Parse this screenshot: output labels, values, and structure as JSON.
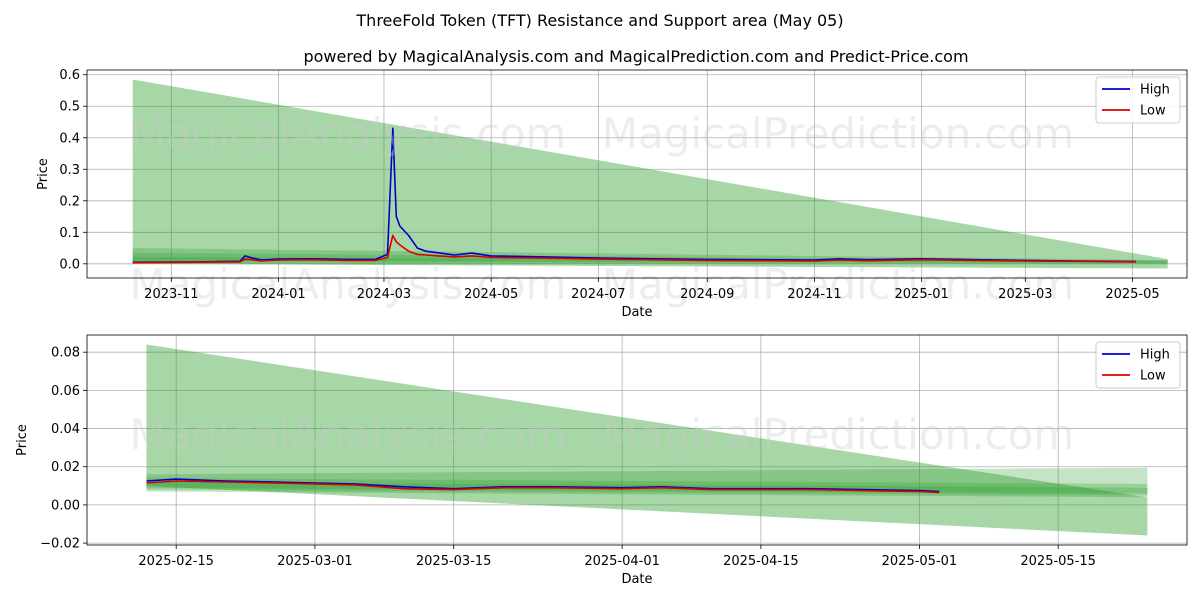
{
  "title": "ThreeFold Token (TFT) Resistance and Support area (May 05)",
  "subtitle": "powered by MagicalAnalysis.com and MagicalPrediction.com and Predict-Price.com",
  "watermarks": [
    "MagicalAnalysis.com",
    "MagicalPrediction.com"
  ],
  "colors": {
    "high": "#0000cc",
    "low": "#dd0000",
    "band": "#2e9e2e",
    "grid": "#b0b0b0"
  },
  "legend": {
    "high": "High",
    "low": "Low",
    "placement": "top-right"
  },
  "chart_data": [
    {
      "type": "line",
      "xlabel": "Date",
      "ylabel": "Price",
      "xlim": [
        "2023-09-14",
        "2025-06-01"
      ],
      "ylim": [
        -0.045,
        0.615
      ],
      "xticks": [
        "2023-11",
        "2024-01",
        "2024-03",
        "2024-05",
        "2024-07",
        "2024-09",
        "2024-11",
        "2025-01",
        "2025-03",
        "2025-05"
      ],
      "xtick_dates": [
        "2023-11-01",
        "2024-01-01",
        "2024-03-01",
        "2024-05-01",
        "2024-07-01",
        "2024-09-01",
        "2024-11-01",
        "2025-01-01",
        "2025-03-01",
        "2025-05-01"
      ],
      "yticks": [
        0.0,
        0.1,
        0.2,
        0.3,
        0.4,
        0.5,
        0.6
      ],
      "ytick_labels": [
        "0.0",
        "0.1",
        "0.2",
        "0.3",
        "0.4",
        "0.5",
        "0.6"
      ],
      "grid": true,
      "resistance_triangle": {
        "start": "2023-10-10",
        "end": "2025-05-21",
        "top_start": 0.585,
        "top_end": 0.015,
        "bottom_start": 0.0,
        "bottom_end": -0.015
      },
      "support_bands": [
        {
          "start": "2023-10-10",
          "end": "2025-05-21",
          "y0_start": 0.0,
          "y1_start": 0.05,
          "y0_end": 0.0,
          "y1_end": 0.012
        },
        {
          "start": "2023-10-10",
          "end": "2025-05-21",
          "y0_start": 0.005,
          "y1_start": 0.035,
          "y0_end": 0.002,
          "y1_end": 0.01
        },
        {
          "start": "2023-10-10",
          "end": "2025-05-21",
          "y0_start": 0.01,
          "y1_start": 0.022,
          "y0_end": 0.004,
          "y1_end": 0.008
        }
      ],
      "series": [
        {
          "name": "High",
          "x": [
            "2023-10-10",
            "2023-11-15",
            "2023-12-10",
            "2023-12-13",
            "2023-12-16",
            "2023-12-22",
            "2024-01-01",
            "2024-01-20",
            "2024-02-10",
            "2024-02-25",
            "2024-03-03",
            "2024-03-06",
            "2024-03-08",
            "2024-03-10",
            "2024-03-15",
            "2024-03-20",
            "2024-03-25",
            "2024-04-01",
            "2024-04-10",
            "2024-04-20",
            "2024-05-01",
            "2024-06-01",
            "2024-07-01",
            "2024-08-01",
            "2024-09-01",
            "2024-10-01",
            "2024-11-01",
            "2024-11-15",
            "2024-12-01",
            "2025-01-01",
            "2025-02-01",
            "2025-03-01",
            "2025-04-01",
            "2025-05-03"
          ],
          "values": [
            0.005,
            0.006,
            0.008,
            0.025,
            0.02,
            0.012,
            0.015,
            0.016,
            0.014,
            0.014,
            0.03,
            0.43,
            0.15,
            0.12,
            0.09,
            0.05,
            0.04,
            0.035,
            0.028,
            0.034,
            0.025,
            0.022,
            0.018,
            0.016,
            0.014,
            0.013,
            0.012,
            0.016,
            0.013,
            0.016,
            0.013,
            0.011,
            0.009,
            0.007
          ]
        },
        {
          "name": "Low",
          "x": [
            "2023-10-10",
            "2023-11-15",
            "2023-12-10",
            "2023-12-13",
            "2023-12-16",
            "2023-12-22",
            "2024-01-01",
            "2024-01-20",
            "2024-02-10",
            "2024-02-25",
            "2024-03-03",
            "2024-03-06",
            "2024-03-08",
            "2024-03-10",
            "2024-03-15",
            "2024-03-20",
            "2024-03-25",
            "2024-04-01",
            "2024-04-10",
            "2024-04-20",
            "2024-05-01",
            "2024-06-01",
            "2024-07-01",
            "2024-08-01",
            "2024-09-01",
            "2024-10-01",
            "2024-11-01",
            "2024-11-15",
            "2024-12-01",
            "2025-01-01",
            "2025-02-01",
            "2025-03-01",
            "2025-04-01",
            "2025-05-03"
          ],
          "values": [
            0.004,
            0.005,
            0.006,
            0.015,
            0.014,
            0.009,
            0.012,
            0.013,
            0.011,
            0.011,
            0.02,
            0.09,
            0.07,
            0.06,
            0.04,
            0.03,
            0.028,
            0.025,
            0.022,
            0.025,
            0.02,
            0.018,
            0.015,
            0.013,
            0.011,
            0.01,
            0.009,
            0.012,
            0.01,
            0.013,
            0.011,
            0.009,
            0.008,
            0.006
          ]
        }
      ]
    },
    {
      "type": "line",
      "xlabel": "Date",
      "ylabel": "Price",
      "xlim": [
        "2025-02-06",
        "2025-05-28"
      ],
      "ylim": [
        -0.021,
        0.089
      ],
      "xticks": [
        "2025-02-15",
        "2025-03-01",
        "2025-03-15",
        "2025-04-01",
        "2025-04-15",
        "2025-05-01",
        "2025-05-15"
      ],
      "xtick_dates": [
        "2025-02-15",
        "2025-03-01",
        "2025-03-15",
        "2025-04-01",
        "2025-04-15",
        "2025-05-01",
        "2025-05-15"
      ],
      "yticks": [
        -0.02,
        0.0,
        0.02,
        0.04,
        0.06,
        0.08
      ],
      "ytick_labels": [
        "−0.02",
        "0.00",
        "0.02",
        "0.04",
        "0.06",
        "0.08"
      ],
      "grid": true,
      "resistance_triangle": {
        "start": "2025-02-12",
        "end": "2025-05-24",
        "top_start": 0.084,
        "top_end": 0.004,
        "bottom_start": 0.01,
        "bottom_end": -0.016
      },
      "support_bands": [
        {
          "start": "2025-02-12",
          "end": "2025-05-24",
          "y0_start": 0.007,
          "y1_start": 0.016,
          "y0_end": 0.004,
          "y1_end": 0.0195
        },
        {
          "start": "2025-02-12",
          "end": "2025-05-24",
          "y0_start": 0.008,
          "y1_start": 0.014,
          "y0_end": 0.005,
          "y1_end": 0.011
        },
        {
          "start": "2025-02-12",
          "end": "2025-05-24",
          "y0_start": 0.009,
          "y1_start": 0.012,
          "y0_end": 0.006,
          "y1_end": 0.009
        }
      ],
      "series": [
        {
          "name": "High",
          "x": [
            "2025-02-12",
            "2025-02-15",
            "2025-02-20",
            "2025-02-25",
            "2025-03-01",
            "2025-03-05",
            "2025-03-10",
            "2025-03-15",
            "2025-03-20",
            "2025-03-25",
            "2025-04-01",
            "2025-04-05",
            "2025-04-10",
            "2025-04-15",
            "2025-04-20",
            "2025-04-25",
            "2025-05-01",
            "2025-05-03"
          ],
          "values": [
            0.0125,
            0.0135,
            0.0125,
            0.012,
            0.0115,
            0.011,
            0.0095,
            0.0085,
            0.0095,
            0.0095,
            0.009,
            0.0095,
            0.0085,
            0.0085,
            0.0085,
            0.008,
            0.0075,
            0.007
          ]
        },
        {
          "name": "Low",
          "x": [
            "2025-02-12",
            "2025-02-15",
            "2025-02-20",
            "2025-02-25",
            "2025-03-01",
            "2025-03-05",
            "2025-03-10",
            "2025-03-15",
            "2025-03-20",
            "2025-03-25",
            "2025-04-01",
            "2025-04-05",
            "2025-04-10",
            "2025-04-15",
            "2025-04-20",
            "2025-04-25",
            "2025-05-01",
            "2025-05-03"
          ],
          "values": [
            0.0115,
            0.0125,
            0.012,
            0.0115,
            0.011,
            0.0105,
            0.0085,
            0.008,
            0.009,
            0.009,
            0.0085,
            0.009,
            0.008,
            0.008,
            0.008,
            0.0075,
            0.007,
            0.0065
          ]
        }
      ]
    }
  ]
}
